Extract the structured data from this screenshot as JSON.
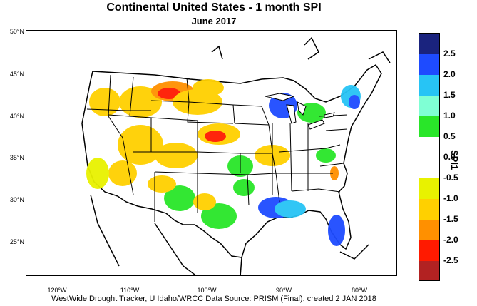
{
  "title": "Continental United States - 1 month SPI",
  "subtitle": "June 2017",
  "footer": "WestWide Drought Tracker, U Idaho/WRCC Data Source: PRISM (Final), created  2 JAN 2018",
  "legend": {
    "label": "SPI1",
    "ticks": [
      "2.5",
      "2.0",
      "1.5",
      "1.0",
      "0.5",
      "0.0",
      "-0.5",
      "-1.0",
      "-1.5",
      "-2.0",
      "-2.5"
    ],
    "colors": [
      "#1a237e",
      "#1e4bff",
      "#27c4f5",
      "#7fffd4",
      "#29e629",
      "#ffffff",
      "#ffffff",
      "#e8f200",
      "#ffd000",
      "#ff9000",
      "#ff1a00",
      "#b22222"
    ]
  },
  "axes": {
    "lat_labels": [
      "50°N",
      "45°N",
      "40°N",
      "35°N",
      "30°N",
      "25°N"
    ],
    "lon_labels": [
      "120°W",
      "110°W",
      "100°W",
      "90°W",
      "80°W"
    ]
  }
}
